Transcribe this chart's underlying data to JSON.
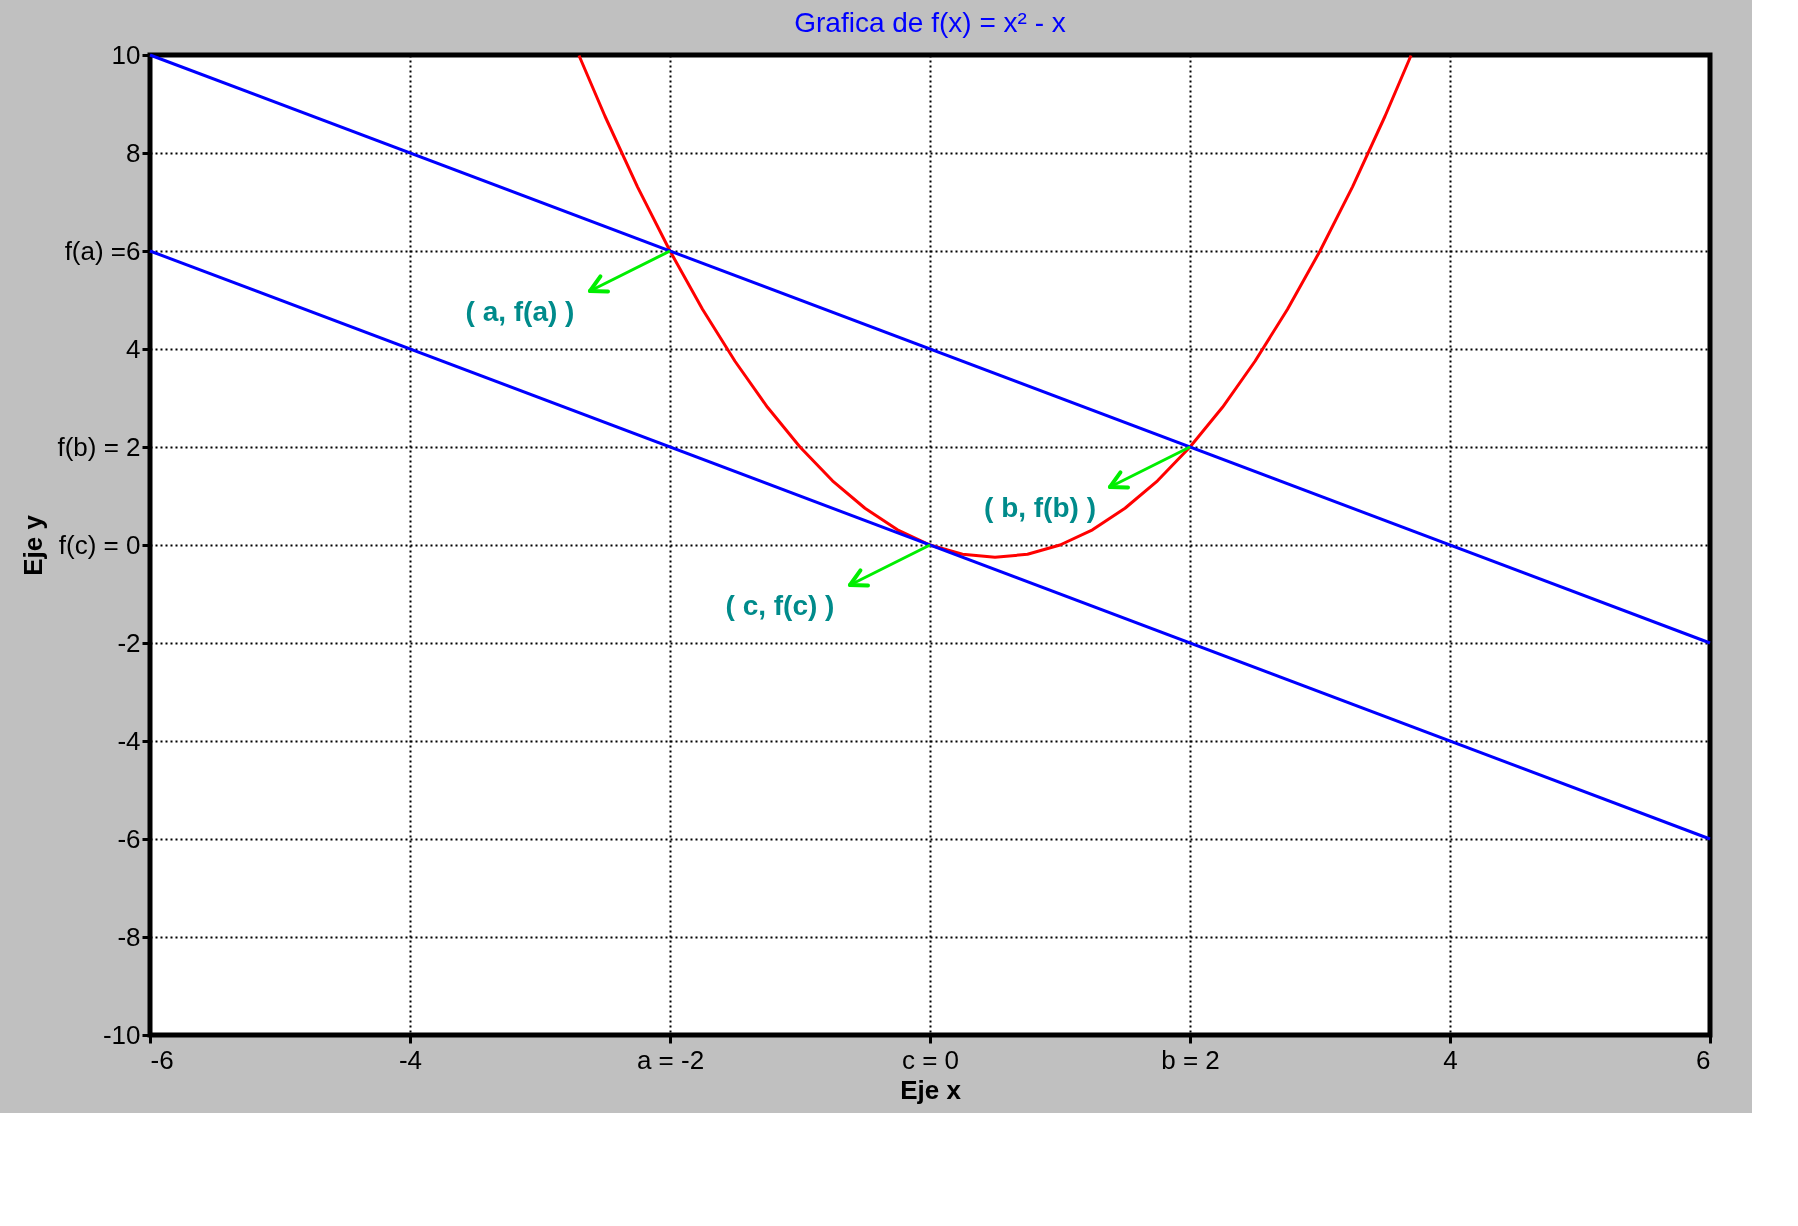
{
  "chart_data": {
    "type": "line",
    "title": "Grafica de f(x) = x² - x",
    "xlabel": "Eje x",
    "ylabel": "Eje y",
    "xlim": [
      -6,
      6
    ],
    "ylim": [
      -10,
      10
    ],
    "xticks": [
      -6,
      -4,
      {
        "value": -2,
        "label": "a = -2"
      },
      {
        "value": 0,
        "label": "c = 0"
      },
      {
        "value": 2,
        "label": "b = 2"
      },
      4,
      6
    ],
    "yticks": [
      -10,
      -8,
      -6,
      -4,
      -2,
      {
        "value": 0,
        "label": "f(c) = 0"
      },
      {
        "value": 2,
        "label": "f(b) = 2"
      },
      4,
      {
        "value": 6,
        "label": "f(a) =6"
      },
      8,
      10
    ],
    "grid": true,
    "marker": "none",
    "line_style": "solid",
    "series": [
      {
        "color": "#ff0000",
        "x": [
          -2.7,
          -2.5,
          -2.25,
          -2,
          -1.75,
          -1.5,
          -1.25,
          -1,
          -0.75,
          -0.5,
          -0.25,
          0,
          0.25,
          0.5,
          0.75,
          1,
          1.25,
          1.5,
          1.75,
          2,
          2.25,
          2.5,
          2.75,
          3,
          3.25,
          3.5,
          3.7
        ],
        "values": [
          9.99,
          8.75,
          7.31,
          6,
          4.81,
          3.75,
          2.81,
          2,
          1.31,
          0.75,
          0.31,
          0,
          -0.19,
          -0.25,
          -0.19,
          0,
          0.31,
          0.75,
          1.31,
          2,
          2.81,
          3.75,
          4.81,
          6,
          7.31,
          8.75,
          9.99
        ]
      },
      {
        "color": "#0000ff",
        "x": [
          -6,
          6
        ],
        "values": [
          10,
          -2
        ]
      },
      {
        "color": "#0000ff",
        "x": [
          -6,
          6
        ],
        "values": [
          6,
          -6
        ]
      }
    ],
    "annotations": [
      {
        "text": "( a, f(a) )",
        "x": -2,
        "y": 6
      },
      {
        "text": "( b, f(b) )",
        "x": 2,
        "y": 2
      },
      {
        "text": "( c, f(c) )",
        "x": 0,
        "y": 0
      }
    ]
  }
}
